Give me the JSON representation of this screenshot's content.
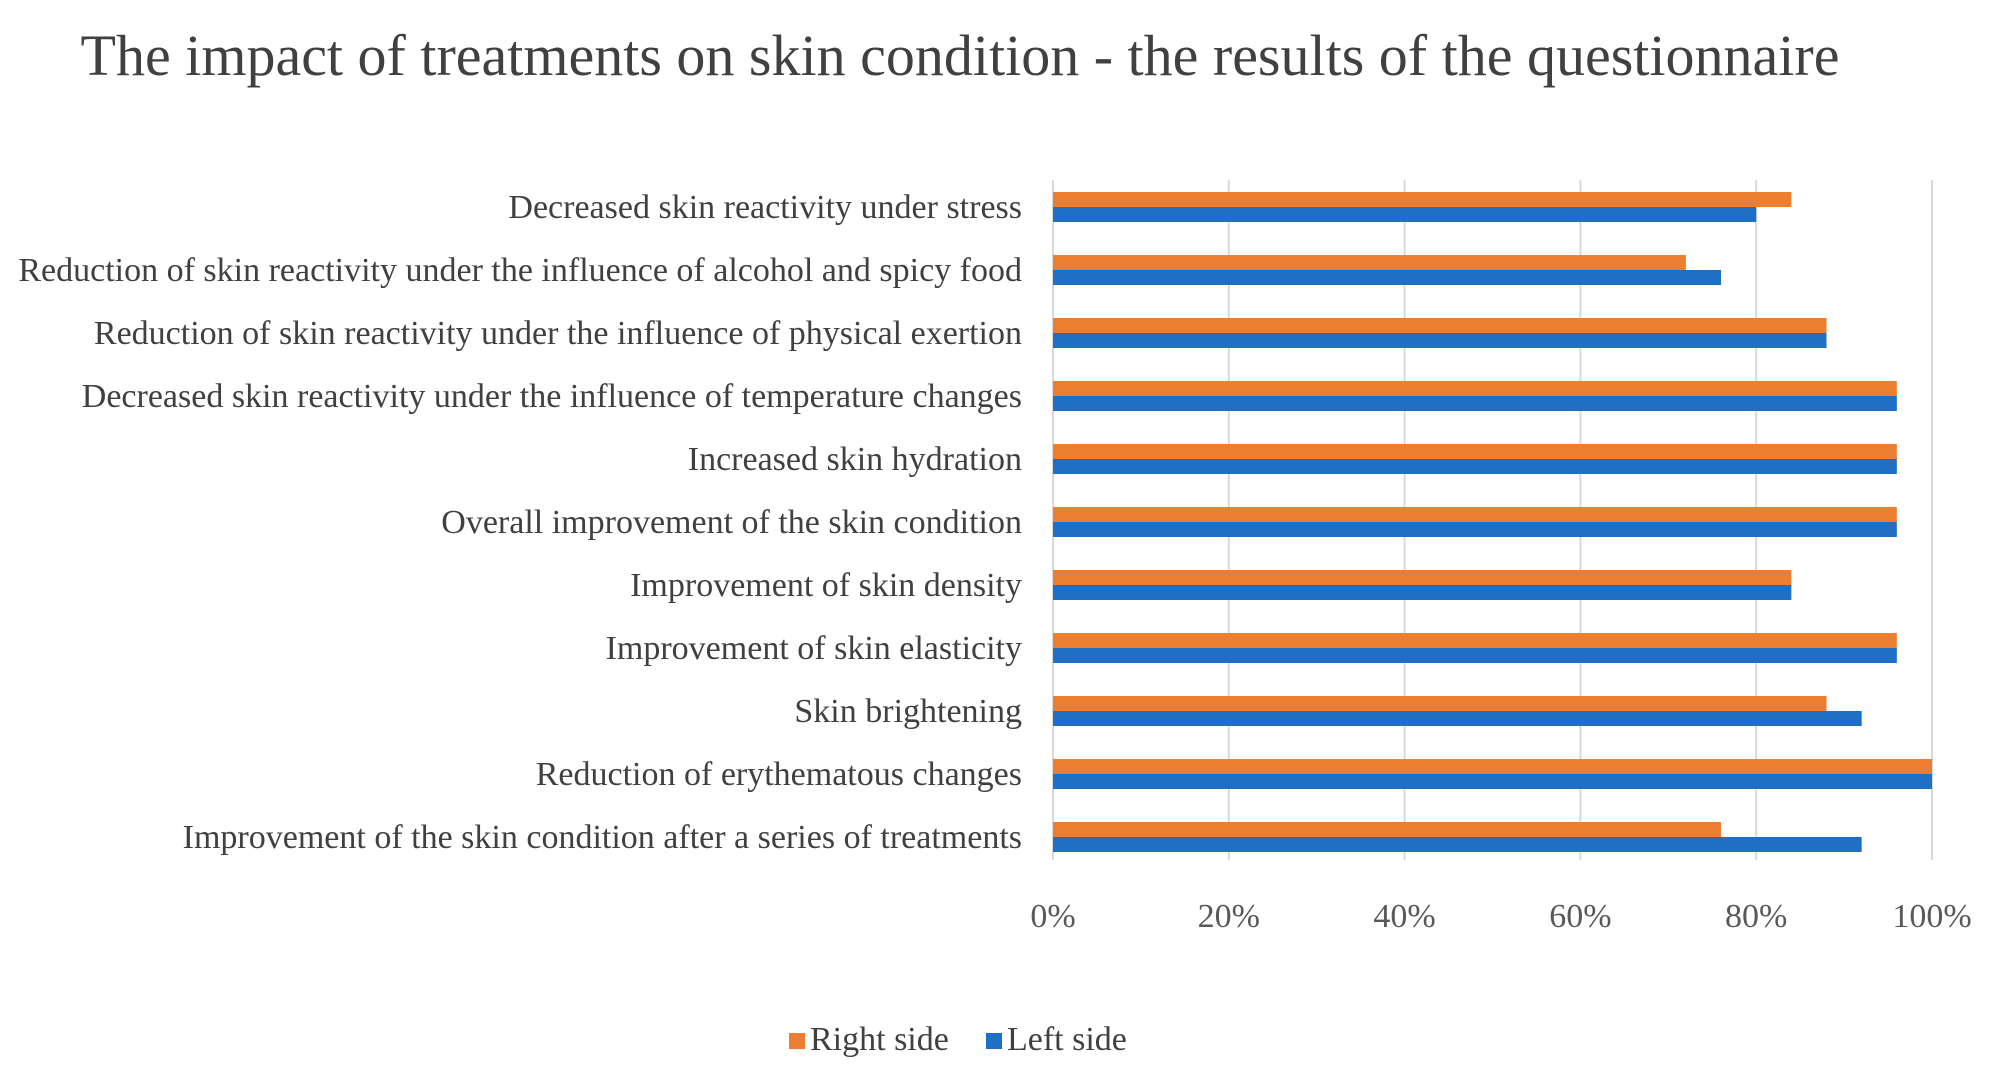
{
  "chart_data": {
    "type": "bar",
    "orientation": "horizontal",
    "title": "The impact of treatments on skin condition  - the results of the questionnaire",
    "categories": [
      "Decreased skin reactivity under stress",
      "Reduction of skin reactivity under the influence of alcohol and spicy food",
      "Reduction of skin reactivity under the influence of physical exertion",
      "Decreased skin reactivity under the influence of temperature changes",
      "Increased skin hydration",
      "Overall improvement of the skin condition",
      "Improvement of skin density",
      "Improvement of skin elasticity",
      "Skin brightening",
      "Reduction of erythematous changes",
      "Improvement of the skin condition after a series of treatments"
    ],
    "series": [
      {
        "name": "Right side",
        "color": "#ed7d31",
        "values": [
          84,
          72,
          88,
          96,
          96,
          96,
          84,
          96,
          88,
          100,
          76
        ]
      },
      {
        "name": "Left side",
        "color": "#1f6fc5",
        "values": [
          80,
          76,
          88,
          96,
          96,
          96,
          84,
          96,
          92,
          100,
          92
        ]
      }
    ],
    "xlim": [
      0,
      100
    ],
    "xticks": [
      "0%",
      "20%",
      "40%",
      "60%",
      "80%",
      "100%"
    ],
    "xlabel": "",
    "ylabel": "",
    "grid": true,
    "legend_position": "bottom"
  }
}
